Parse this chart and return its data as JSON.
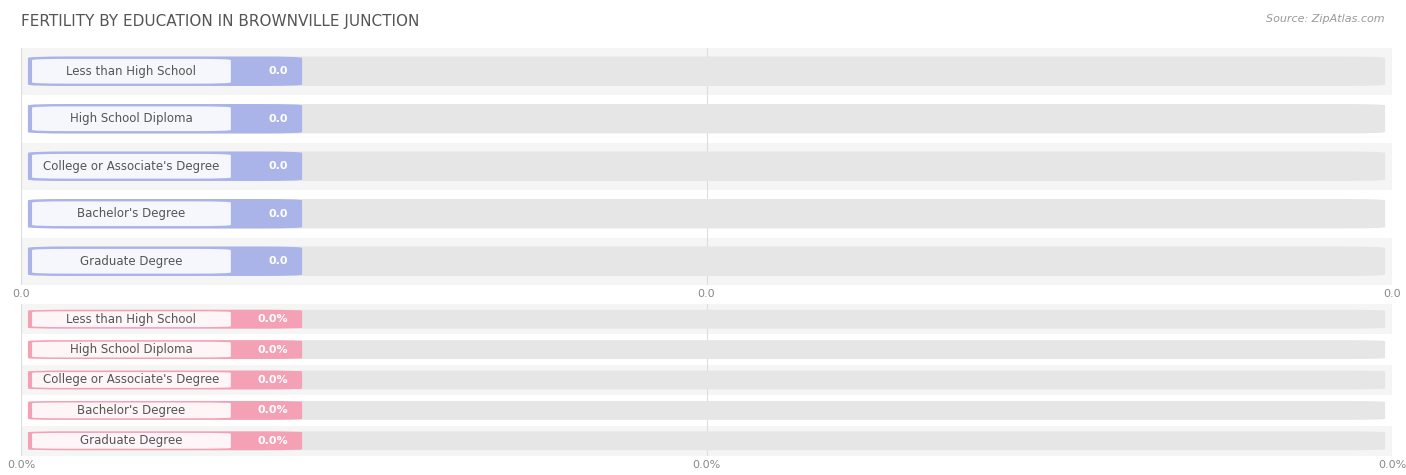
{
  "title": "FERTILITY BY EDUCATION IN BROWNVILLE JUNCTION",
  "source": "Source: ZipAtlas.com",
  "categories": [
    "Less than High School",
    "High School Diploma",
    "College or Associate's Degree",
    "Bachelor's Degree",
    "Graduate Degree"
  ],
  "top_values": [
    0.0,
    0.0,
    0.0,
    0.0,
    0.0
  ],
  "bottom_values": [
    0.0,
    0.0,
    0.0,
    0.0,
    0.0
  ],
  "top_color": "#aab4e8",
  "bottom_color": "#f4a0b5",
  "bar_bg_color": "#e6e6e6",
  "row_bg_even": "#f5f5f5",
  "row_bg_odd": "#ffffff",
  "title_color": "#555555",
  "label_text_color": "#555555",
  "tick_color": "#bbbbbb",
  "grid_color": "#dddddd",
  "background_color": "#ffffff",
  "title_fontsize": 11,
  "source_fontsize": 8,
  "label_fontsize": 8.5,
  "value_fontsize": 8,
  "tick_fontsize": 8,
  "xlim": [
    0,
    1
  ],
  "xticks": [
    0.0,
    0.5,
    1.0
  ],
  "top_xtick_labels": [
    "0.0",
    "0.0",
    "0.0"
  ],
  "bottom_xtick_labels": [
    "0.0%",
    "0.0%",
    "0.0%"
  ]
}
